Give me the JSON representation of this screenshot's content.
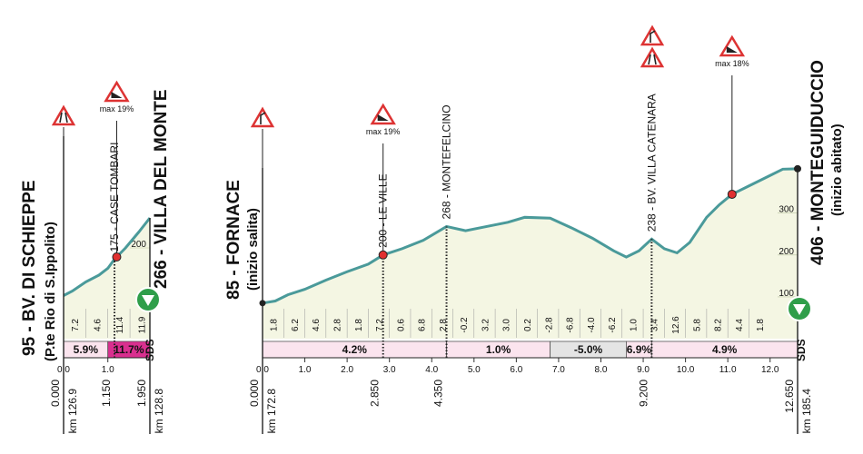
{
  "chart_data": [
    {
      "type": "area",
      "start_label": "95 - BV. DI SCHIEPPE",
      "start_note": "(P.te Rio di S.Ippolito)",
      "end_label": "266 - VILLA DEL MONTE",
      "x": [
        0,
        0.2,
        0.5,
        0.8,
        1.0,
        1.15,
        1.4,
        1.7,
        1.95
      ],
      "values": [
        95,
        105,
        125,
        140,
        155,
        175,
        200,
        235,
        266
      ],
      "color": "#f4f6e3",
      "line_color": "#4a9a9a",
      "xlim": [
        0,
        1.95
      ],
      "xticks": [
        {
          "value": 0,
          "label": "0.0"
        },
        {
          "value": 1,
          "label": "1.0"
        }
      ],
      "ylim": [
        0,
        266
      ],
      "yticks": [
        200
      ],
      "segment_grades": {
        "values": [
          7.2,
          4.6,
          11.4,
          11.9
        ],
        "value_labels": [
          "7.2",
          "4.6",
          "11.4",
          "11.9"
        ]
      },
      "sectors": [
        {
          "start": 0,
          "end": 1.0,
          "grade": 5.9,
          "label": "5.9%"
        },
        {
          "start": 1.0,
          "end": 1.95,
          "grade": 11.7,
          "label": "11.7%"
        }
      ],
      "points": [
        {
          "km": 1.15,
          "label": "175 - CASE TOMBARI"
        }
      ],
      "climbs": [
        {
          "km": 1.2,
          "label": "max 19%"
        }
      ],
      "distances": [
        {
          "km": 0,
          "label": "0.000"
        },
        {
          "km": 1.15,
          "label": "1.150"
        },
        {
          "km": 1.95,
          "label": "1.950"
        }
      ],
      "km_start": "km 126.9",
      "km_end": "km 128.8",
      "logo": "SDS"
    },
    {
      "type": "area",
      "start_label": "85 - FORNACE",
      "start_note": "(inizio salita)",
      "end_label": "406 - MONTEGUIDUCCIO",
      "end_note": "(inizio abitato)",
      "x": [
        0,
        0.3,
        0.6,
        1.0,
        1.5,
        2.0,
        2.5,
        2.85,
        3.3,
        3.8,
        4.35,
        4.8,
        5.3,
        5.8,
        6.2,
        6.8,
        7.3,
        7.8,
        8.3,
        8.6,
        8.9,
        9.2,
        9.5,
        9.8,
        10.1,
        10.5,
        10.8,
        11.1,
        11.5,
        12.0,
        12.3,
        12.65
      ],
      "values": [
        85,
        90,
        105,
        118,
        140,
        160,
        178,
        200,
        215,
        235,
        268,
        258,
        268,
        278,
        290,
        288,
        265,
        240,
        210,
        195,
        210,
        238,
        215,
        205,
        230,
        290,
        320,
        345,
        365,
        390,
        405,
        406
      ],
      "color": "#f4f6e3",
      "line_color": "#4a9a9a",
      "xlim": [
        0,
        12.65
      ],
      "xticks": [
        {
          "value": 0,
          "label": "0.0"
        },
        {
          "value": 1,
          "label": "1.0"
        },
        {
          "value": 2,
          "label": "2.0"
        },
        {
          "value": 3,
          "label": "3.0"
        },
        {
          "value": 4,
          "label": "4.0"
        },
        {
          "value": 5,
          "label": "5.0"
        },
        {
          "value": 6,
          "label": "6.0"
        },
        {
          "value": 7,
          "label": "7.0"
        },
        {
          "value": 8,
          "label": "8.0"
        },
        {
          "value": 9,
          "label": "9.0"
        },
        {
          "value": 10,
          "label": "10.0"
        },
        {
          "value": 11,
          "label": "11.0"
        },
        {
          "value": 12,
          "label": "12.0"
        }
      ],
      "ylim": [
        0,
        410
      ],
      "yticks": [
        100,
        200,
        300
      ],
      "segment_grades": {
        "values": [
          1.8,
          6.2,
          4.6,
          2.8,
          1.8,
          7.2,
          0.6,
          6.8,
          2.8,
          -0.2,
          3.2,
          3.0,
          0.2,
          -2.8,
          -6.8,
          -4.0,
          -6.2,
          1.0,
          3.4,
          12.6,
          5.8,
          8.2,
          4.4,
          1.8
        ],
        "value_labels": [
          "1.8",
          "6.2",
          "4.6",
          "2.8",
          "1.8",
          "7.2",
          "0.6",
          "6.8",
          "2.8",
          "-0.2",
          "3.2",
          "3.0",
          "0.2",
          "-2.8",
          "-6.8",
          "-4.0",
          "-6.2",
          "1.0",
          "3.4",
          "12.6",
          "5.8",
          "8.2",
          "4.4",
          "1.8"
        ]
      },
      "sectors": [
        {
          "start": 0,
          "end": 4.35,
          "grade": 4.2,
          "label": "4.2%"
        },
        {
          "start": 4.35,
          "end": 6.8,
          "grade": 1.0,
          "label": "1.0%"
        },
        {
          "start": 6.8,
          "end": 8.6,
          "grade": -5.0,
          "label": "-5.0%"
        },
        {
          "start": 8.6,
          "end": 9.2,
          "grade": 6.9,
          "label": "6.9%"
        },
        {
          "start": 9.2,
          "end": 12.65,
          "grade": 4.9,
          "label": "4.9%"
        }
      ],
      "points": [
        {
          "km": 2.85,
          "label": "200 - LE VILLE"
        },
        {
          "km": 4.35,
          "label": "268 - MONTEFELCINO"
        },
        {
          "km": 9.2,
          "label": "238 - BV. VILLA CATENARA"
        }
      ],
      "climbs": [
        {
          "km": 2.85,
          "label": "max 19%"
        },
        {
          "km": 11.1,
          "label": "max 18%"
        }
      ],
      "distances": [
        {
          "km": 0,
          "label": "0.000"
        },
        {
          "km": 2.85,
          "label": "2.850"
        },
        {
          "km": 4.35,
          "label": "4.350"
        },
        {
          "km": 9.2,
          "label": "9.200"
        },
        {
          "km": 12.65,
          "label": "12.650"
        }
      ],
      "km_start": "km 172.8",
      "km_end": "km 185.4",
      "logo": "SDS"
    }
  ]
}
